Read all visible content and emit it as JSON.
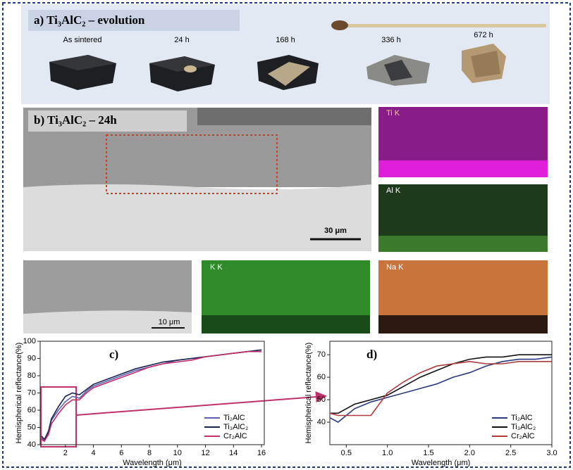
{
  "panel_a": {
    "label": "a) Ti₃AlC₂ – evolution",
    "samples": [
      "As sintered",
      "24 h",
      "168 h",
      "336 h",
      "672 h"
    ]
  },
  "panel_b": {
    "label": "b) Ti₃AlC₂ – 24h",
    "scale_main": "30 μm",
    "scale_zoom": "10 μm",
    "maps": [
      "Ti K",
      "Al K",
      "K K",
      "Na K"
    ]
  },
  "chart_data": [
    {
      "type": "line",
      "title": "c)",
      "x_label": "Wavelength (μm)",
      "y_label": "Hemispherical reflectance(%)",
      "x": [
        0.3,
        0.5,
        0.8,
        1,
        1.5,
        2,
        2.5,
        3,
        3.5,
        4,
        5,
        6,
        7,
        8,
        9,
        10,
        11,
        12,
        13,
        14,
        15,
        16
      ],
      "xlim": [
        0.2,
        16.2
      ],
      "xticks": [
        2,
        4,
        6,
        8,
        10,
        12,
        14,
        16
      ],
      "ylim": [
        40,
        100
      ],
      "yticks": [
        40,
        50,
        60,
        70,
        80,
        90,
        100
      ],
      "legend": "lower right",
      "series": [
        {
          "name": "Ti₂AlC",
          "color": "#5b5fb0",
          "values": [
            44,
            42,
            47,
            54,
            60,
            65,
            68,
            67,
            71,
            74,
            77,
            80,
            83,
            85,
            87,
            89,
            90,
            91,
            92,
            93,
            94,
            95
          ]
        },
        {
          "name": "Ti₃AlC₂",
          "color": "#1a2350",
          "values": [
            45,
            43,
            48,
            55,
            62,
            68,
            70,
            69,
            72,
            75,
            78,
            81,
            84,
            86,
            88,
            89,
            90,
            91,
            92,
            93,
            94,
            95
          ]
        },
        {
          "name": "Cr₂AlC",
          "color": "#c0306a",
          "values": [
            43,
            42,
            46,
            52,
            58,
            63,
            66,
            66,
            70,
            73,
            76,
            79,
            82,
            85,
            87,
            88,
            89,
            91,
            92,
            93,
            94,
            94
          ]
        }
      ]
    },
    {
      "type": "line",
      "title": "d)",
      "x_label": "Wavelength (μm)",
      "y_label": "Hemispherical reflectance(%)",
      "x": [
        0.3,
        0.4,
        0.5,
        0.6,
        0.8,
        1.0,
        1.2,
        1.4,
        1.6,
        1.8,
        2.0,
        2.2,
        2.4,
        2.6,
        2.8,
        3.0
      ],
      "xlim": [
        0.3,
        3.0
      ],
      "xticks": [
        {
          "value": 0.5,
          "label": "0.5"
        },
        {
          "value": 1,
          "label": "1.0"
        },
        {
          "value": 1.5,
          "label": "1.5"
        },
        {
          "value": 2,
          "label": "2.0"
        },
        {
          "value": 2.5,
          "label": "2.5"
        },
        {
          "value": 3,
          "label": "3.0"
        }
      ],
      "ylim": [
        30,
        76
      ],
      "yticks": [
        40,
        50,
        60,
        70
      ],
      "legend": "lower right",
      "series": [
        {
          "name": "Ti₂AlC",
          "color": "#2a3a80",
          "values": [
            42,
            40,
            43,
            46,
            49,
            51,
            53,
            55,
            57,
            60,
            62,
            65,
            67,
            68,
            68,
            69
          ]
        },
        {
          "name": "Ti₃AlC₂",
          "color": "#111111",
          "values": [
            44,
            44,
            46,
            48,
            50,
            52,
            56,
            60,
            63,
            66,
            68,
            69,
            69,
            70,
            70,
            70
          ]
        },
        {
          "name": "Cr₂AlC",
          "color": "#b03a3a",
          "values": [
            44,
            43,
            43,
            43,
            43,
            53,
            58,
            62,
            65,
            66,
            67,
            66,
            66,
            67,
            67,
            67
          ]
        }
      ]
    }
  ]
}
